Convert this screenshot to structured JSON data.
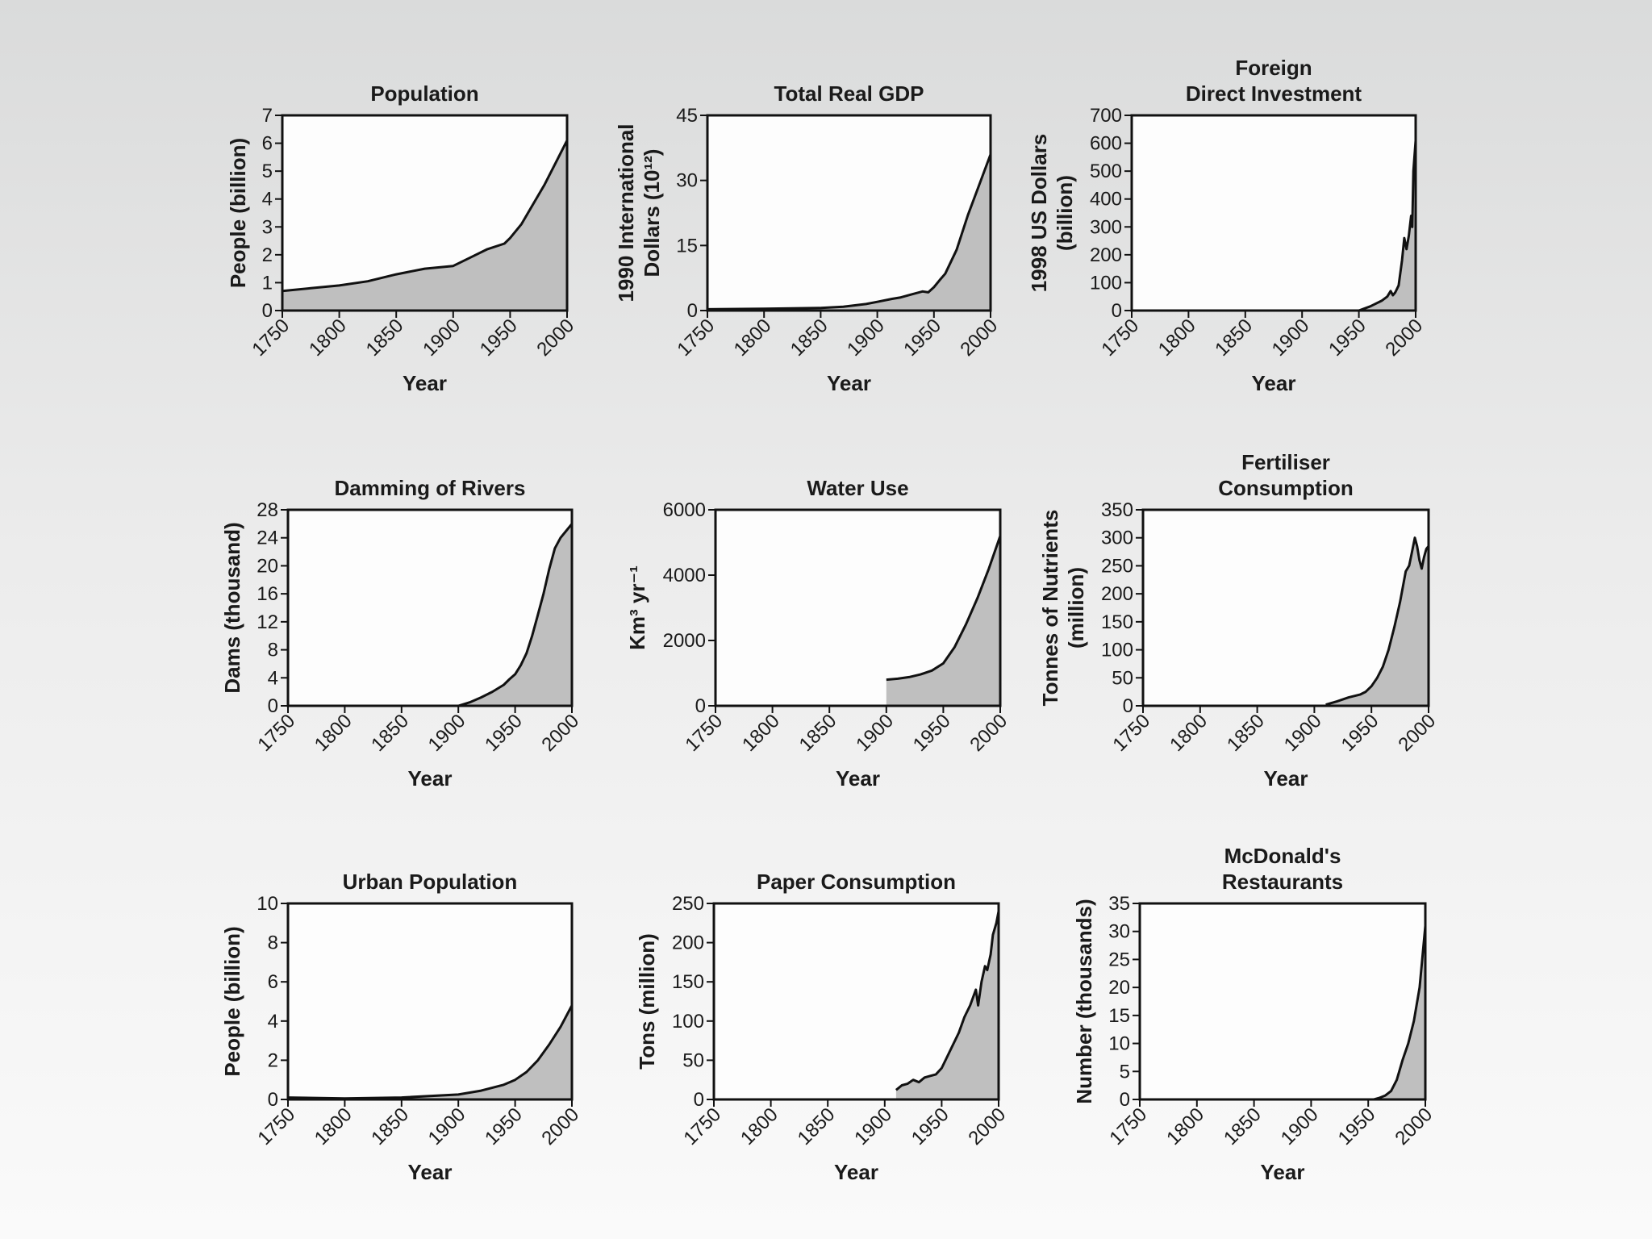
{
  "chart_data": [
    {
      "type": "area",
      "title": [
        "Population"
      ],
      "xlabel": "Year",
      "ylabel": [
        "People (billion)"
      ],
      "xlim": [
        1750,
        2000
      ],
      "ylim": [
        0,
        7
      ],
      "xticks": [
        "1750",
        "1800",
        "1850",
        "1900",
        "1950",
        "2000"
      ],
      "yticks": [
        "0",
        "1",
        "2",
        "3",
        "4",
        "5",
        "6",
        "7"
      ],
      "x": [
        1750,
        1775,
        1800,
        1825,
        1850,
        1875,
        1900,
        1915,
        1930,
        1945,
        1950,
        1960,
        1970,
        1980,
        1990,
        2000
      ],
      "values": [
        0.7,
        0.8,
        0.9,
        1.05,
        1.3,
        1.5,
        1.6,
        1.9,
        2.2,
        2.4,
        2.6,
        3.1,
        3.8,
        4.5,
        5.3,
        6.1
      ]
    },
    {
      "type": "area",
      "title": [
        "Total Real GDP"
      ],
      "xlabel": "Year",
      "ylabel": [
        "1990 International",
        "Dollars (10¹²)"
      ],
      "xlim": [
        1750,
        2000
      ],
      "ylim": [
        0,
        45
      ],
      "xticks": [
        "1750",
        "1800",
        "1850",
        "1900",
        "1950",
        "2000"
      ],
      "yticks": [
        "0",
        "15",
        "30",
        "45"
      ],
      "x": [
        1750,
        1800,
        1850,
        1870,
        1890,
        1900,
        1913,
        1920,
        1930,
        1940,
        1945,
        1950,
        1955,
        1960,
        1970,
        1980,
        1990,
        2000
      ],
      "values": [
        0.3,
        0.4,
        0.6,
        0.9,
        1.5,
        2.0,
        2.7,
        3.0,
        3.7,
        4.4,
        4.2,
        5.4,
        7.0,
        8.5,
        14.0,
        22.0,
        29.0,
        36.0
      ]
    },
    {
      "type": "area",
      "title": [
        "Foreign",
        "Direct Investment"
      ],
      "xlabel": "Year",
      "ylabel": [
        "1998 US Dollars",
        "(billion)"
      ],
      "xlim": [
        1750,
        2000
      ],
      "ylim": [
        0,
        700
      ],
      "xticks": [
        "1750",
        "1800",
        "1850",
        "1900",
        "1950",
        "2000"
      ],
      "yticks": [
        "0",
        "100",
        "200",
        "300",
        "400",
        "500",
        "600",
        "700"
      ],
      "x": [
        1950,
        1960,
        1970,
        1975,
        1978,
        1980,
        1982,
        1985,
        1988,
        1990,
        1992,
        1994,
        1996,
        1997,
        1998,
        2000
      ],
      "values": [
        0,
        15,
        35,
        50,
        70,
        55,
        65,
        90,
        180,
        260,
        220,
        270,
        340,
        300,
        500,
        610
      ]
    },
    {
      "type": "area",
      "title": [
        "Damming of Rivers"
      ],
      "xlabel": "Year",
      "ylabel": [
        "Dams (thousand)"
      ],
      "xlim": [
        1750,
        2000
      ],
      "ylim": [
        0,
        28
      ],
      "xticks": [
        "1750",
        "1800",
        "1850",
        "1900",
        "1950",
        "2000"
      ],
      "yticks": [
        "0",
        "4",
        "8",
        "12",
        "16",
        "20",
        "24",
        "28"
      ],
      "x": [
        1750,
        1850,
        1900,
        1910,
        1920,
        1930,
        1940,
        1945,
        1950,
        1955,
        1960,
        1965,
        1970,
        1975,
        1980,
        1985,
        1990,
        1995,
        2000
      ],
      "values": [
        0,
        0,
        0,
        0.5,
        1.2,
        2.0,
        3.0,
        3.8,
        4.5,
        5.8,
        7.5,
        10.0,
        13.0,
        16.0,
        19.5,
        22.5,
        24.0,
        25.0,
        26.0
      ]
    },
    {
      "type": "area",
      "title": [
        "Water Use"
      ],
      "xlabel": "Year",
      "ylabel": [
        "Km³ yr⁻¹"
      ],
      "xlim": [
        1750,
        2000
      ],
      "ylim": [
        0,
        6000
      ],
      "xticks": [
        "1750",
        "1800",
        "1850",
        "1900",
        "1950",
        "2000"
      ],
      "yticks": [
        "0",
        "2000",
        "4000",
        "6000"
      ],
      "x": [
        1900,
        1910,
        1920,
        1930,
        1940,
        1950,
        1960,
        1970,
        1980,
        1990,
        2000
      ],
      "values": [
        800,
        830,
        880,
        960,
        1080,
        1300,
        1800,
        2500,
        3300,
        4200,
        5200
      ]
    },
    {
      "type": "area",
      "title": [
        "Fertiliser",
        "Consumption"
      ],
      "xlabel": "Year",
      "ylabel": [
        "Tonnes of Nutrients",
        "(million)"
      ],
      "xlim": [
        1750,
        2000
      ],
      "ylim": [
        0,
        350
      ],
      "xticks": [
        "1750",
        "1800",
        "1850",
        "1900",
        "1950",
        "2000"
      ],
      "yticks": [
        "0",
        "50",
        "100",
        "150",
        "200",
        "250",
        "300",
        "350"
      ],
      "x": [
        1910,
        1920,
        1930,
        1940,
        1945,
        1950,
        1955,
        1960,
        1965,
        1970,
        1975,
        1980,
        1983,
        1985,
        1988,
        1990,
        1992,
        1994,
        1996,
        1998,
        2000
      ],
      "values": [
        2,
        8,
        15,
        20,
        25,
        35,
        50,
        70,
        100,
        140,
        185,
        240,
        250,
        270,
        300,
        285,
        260,
        245,
        265,
        280,
        285
      ]
    },
    {
      "type": "area",
      "title": [
        "Urban Population"
      ],
      "xlabel": "Year",
      "ylabel": [
        "People (billion)"
      ],
      "xlim": [
        1750,
        2000
      ],
      "ylim": [
        0,
        10
      ],
      "xticks": [
        "1750",
        "1800",
        "1850",
        "1900",
        "1950",
        "2000"
      ],
      "yticks": [
        "0",
        "2",
        "4",
        "6",
        "8",
        "10"
      ],
      "x": [
        1750,
        1800,
        1850,
        1900,
        1920,
        1940,
        1950,
        1960,
        1970,
        1980,
        1990,
        2000
      ],
      "values": [
        0.1,
        0.05,
        0.1,
        0.25,
        0.45,
        0.75,
        1.0,
        1.4,
        2.0,
        2.8,
        3.7,
        4.8
      ]
    },
    {
      "type": "area",
      "title": [
        "Paper Consumption"
      ],
      "xlabel": "Year",
      "ylabel": [
        "Tons (million)"
      ],
      "xlim": [
        1750,
        2000
      ],
      "ylim": [
        0,
        250
      ],
      "xticks": [
        "1750",
        "1800",
        "1850",
        "1900",
        "1950",
        "2000"
      ],
      "yticks": [
        "0",
        "50",
        "100",
        "150",
        "200",
        "250"
      ],
      "x": [
        1910,
        1915,
        1920,
        1925,
        1930,
        1935,
        1940,
        1945,
        1950,
        1955,
        1960,
        1965,
        1970,
        1975,
        1980,
        1982,
        1985,
        1988,
        1990,
        1993,
        1995,
        1998,
        2000
      ],
      "values": [
        12,
        18,
        20,
        25,
        22,
        28,
        30,
        32,
        40,
        55,
        70,
        85,
        105,
        120,
        140,
        120,
        150,
        170,
        165,
        185,
        210,
        225,
        240
      ]
    },
    {
      "type": "area",
      "title": [
        "McDonald's",
        "Restaurants"
      ],
      "xlabel": "Year",
      "ylabel": [
        "Number (thousands)"
      ],
      "xlim": [
        1750,
        2000
      ],
      "ylim": [
        0,
        35
      ],
      "xticks": [
        "1750",
        "1800",
        "1850",
        "1900",
        "1950",
        "2000"
      ],
      "yticks": [
        "0",
        "5",
        "10",
        "15",
        "20",
        "25",
        "30",
        "35"
      ],
      "x": [
        1955,
        1960,
        1965,
        1970,
        1975,
        1980,
        1985,
        1990,
        1995,
        2000
      ],
      "values": [
        0,
        0.3,
        0.7,
        1.5,
        3.5,
        7,
        10,
        14,
        20,
        31
      ]
    }
  ]
}
